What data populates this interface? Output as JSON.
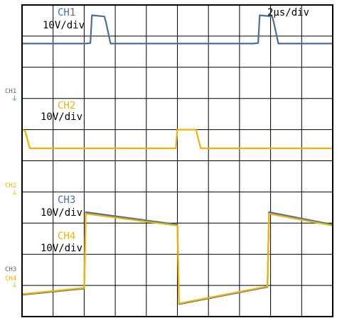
{
  "timebase_label": "2μs/div",
  "colors": {
    "blue": "#4a6ea0",
    "yellow": "#f0b400",
    "grid": "#000000",
    "background": "#ffffff"
  },
  "channels": [
    {
      "id": "ch1",
      "name": "CH1",
      "scale": "10V/div",
      "marker": "CH1",
      "color": "#4a6ea0"
    },
    {
      "id": "ch2",
      "name": "CH2",
      "scale": "10V/div",
      "marker": "CH2",
      "color": "#f0b400"
    },
    {
      "id": "ch3",
      "name": "CH3",
      "scale": "10V/div",
      "marker": "CH3",
      "color": "#4a6ea0"
    },
    {
      "id": "ch4",
      "name": "CH4",
      "scale": "10V/div",
      "marker": "CH4",
      "color": "#f0b400"
    }
  ],
  "chart_data": {
    "type": "line",
    "grid": true,
    "divisions": {
      "x": 10,
      "y": 10
    },
    "xlim": [
      0,
      10
    ],
    "ylim": [
      0,
      10
    ],
    "series": [
      {
        "name": "CH1",
        "x": [
          0.0,
          2.05,
          2.2,
          2.25,
          2.65,
          2.7,
          2.85,
          7.45,
          7.6,
          7.65,
          8.05,
          8.1,
          8.25,
          10.0
        ],
        "y": [
          8.76,
          8.76,
          8.78,
          9.67,
          9.63,
          9.45,
          8.76,
          8.76,
          8.78,
          9.67,
          9.63,
          9.45,
          8.76,
          8.76
        ]
      },
      {
        "name": "CH2",
        "x": [
          0.0,
          0.1,
          0.25,
          4.95,
          5.0,
          5.6,
          5.75,
          10.0
        ],
        "y": [
          6.0,
          5.95,
          5.4,
          5.4,
          6.0,
          6.0,
          5.4,
          5.4
        ]
      },
      {
        "name": "CH3",
        "x": [
          0.0,
          2.0,
          2.05,
          5.0,
          5.05,
          7.9,
          7.95,
          10.0
        ],
        "y": [
          0.7,
          0.9,
          3.35,
          2.95,
          0.4,
          0.95,
          3.35,
          2.95
        ]
      },
      {
        "name": "CH4",
        "x": [
          0.0,
          2.0,
          2.05,
          5.0,
          5.05,
          7.9,
          7.95,
          10.0
        ],
        "y": [
          0.72,
          0.92,
          3.3,
          2.92,
          0.42,
          0.97,
          3.3,
          2.92
        ]
      }
    ]
  }
}
